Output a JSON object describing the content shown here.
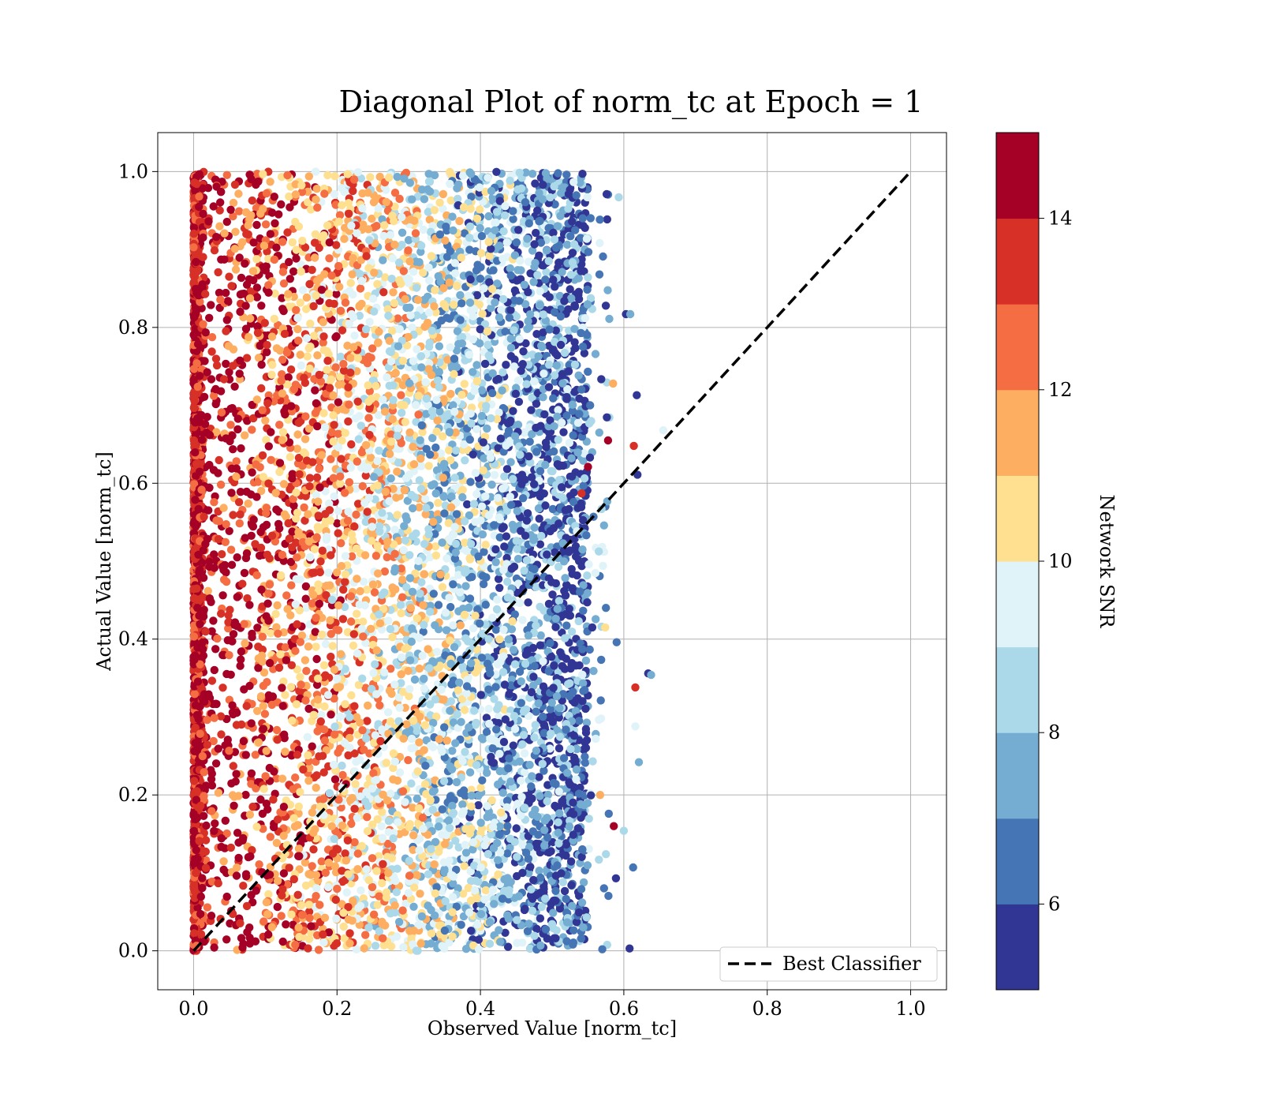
{
  "chart_data": {
    "type": "scatter",
    "title": "Diagonal Plot of norm_tc at Epoch = 1",
    "xlabel": "Observed Value [norm_tc]",
    "ylabel": "Actual Value [norm_tc]",
    "xlim": [
      -0.05,
      1.05
    ],
    "ylim": [
      -0.05,
      1.05
    ],
    "xticks": [
      "0.0",
      "0.2",
      "0.4",
      "0.6",
      "0.8",
      "1.0"
    ],
    "yticks": [
      "0.0",
      "0.2",
      "0.4",
      "0.6",
      "0.8",
      "1.0"
    ],
    "grid": true,
    "legend": {
      "position": "bottom-right",
      "entries": [
        "Best Classifier"
      ]
    },
    "reference_line": {
      "name": "Best Classifier",
      "x": [
        0,
        1
      ],
      "y": [
        0,
        1
      ],
      "style": "dashed",
      "color": "#000000"
    },
    "colorbar": {
      "label": "Network SNR",
      "ticks": [
        "6",
        "8",
        "10",
        "12",
        "14"
      ],
      "range": [
        5,
        15
      ],
      "bins": 10,
      "colors": [
        "#313695",
        "#4575b4",
        "#74add1",
        "#abd9e9",
        "#e0f3f8",
        "#fee090",
        "#fdae61",
        "#f46d43",
        "#d73027",
        "#a50026"
      ]
    },
    "points": [
      [
        0.603,
        0.817,
        5.1
      ],
      [
        0.609,
        0.817,
        7.2
      ],
      [
        0.618,
        0.713,
        5.5
      ],
      [
        0.593,
        0.967,
        8.4
      ],
      [
        0.576,
        0.971,
        5.3
      ],
      [
        0.571,
        0.891,
        6.4
      ],
      [
        0.566,
        0.868,
        6.9
      ],
      [
        0.655,
        0.668,
        9.8
      ],
      [
        0.614,
        0.648,
        13.6
      ],
      [
        0.619,
        0.611,
        5.7
      ],
      [
        0.578,
        0.655,
        14.2
      ],
      [
        0.585,
        0.728,
        11.3
      ],
      [
        0.634,
        0.356,
        5.4
      ],
      [
        0.638,
        0.354,
        7.3
      ],
      [
        0.616,
        0.338,
        13.4
      ],
      [
        0.616,
        0.288,
        9.6
      ],
      [
        0.621,
        0.242,
        7.8
      ],
      [
        0.613,
        0.107,
        6.5
      ],
      [
        0.586,
        0.16,
        14.5
      ],
      [
        0.567,
        0.2,
        11.1
      ],
      [
        0.59,
        0.396,
        6.8
      ],
      [
        0.574,
        0.415,
        10.6
      ],
      [
        0.575,
        0.44,
        6.3
      ],
      [
        0.571,
        0.494,
        9.9
      ],
      [
        0.569,
        0.567,
        8.6
      ],
      [
        0.608,
        0.003,
        5.3
      ],
      [
        0.57,
        0.002,
        6.6
      ],
      [
        0.589,
        0.093,
        5.6
      ],
      [
        0.575,
        0.124,
        8.7
      ],
      [
        0.579,
        0.176,
        6.9
      ],
      [
        0.6,
        0.154,
        8.4
      ],
      [
        0.553,
        0.7,
        6.1
      ],
      [
        0.55,
        0.621,
        14.7
      ],
      [
        0.541,
        0.587,
        13.6
      ]
    ]
  }
}
